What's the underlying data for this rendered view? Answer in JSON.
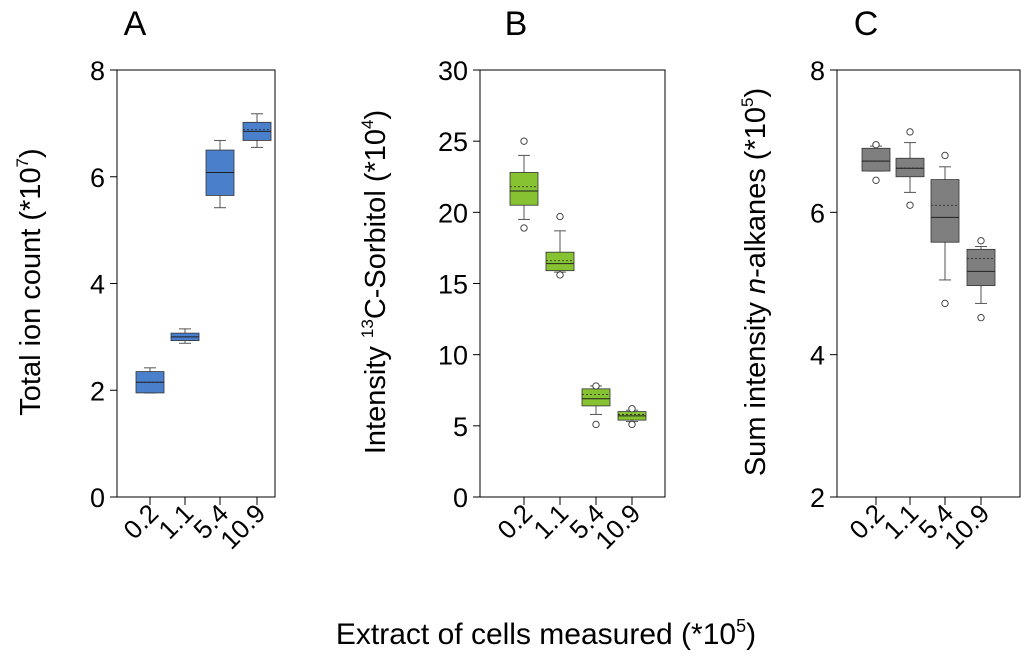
{
  "figure": {
    "xlabel_main": "Extract of cells measured (*10",
    "xlabel_exp": "5",
    "xlabel_close": ")"
  },
  "colors": {
    "A": "#4a7fcc",
    "B": "#86c232",
    "C": "#7f7f7f",
    "axis": "#000000",
    "whisker": "#555555"
  },
  "chart_data": [
    {
      "id": "A",
      "type": "box",
      "panel_label": "A",
      "ylabel_parts": [
        "Total ion count (*10",
        "7",
        ")"
      ],
      "ylim": [
        0,
        8
      ],
      "yticks": [
        0,
        2,
        4,
        6,
        8
      ],
      "categories": [
        "0.2",
        "1.1",
        "5.4",
        "10.9"
      ],
      "color_key": "A",
      "boxes": [
        {
          "x": "0.2",
          "whisker_low": 1.95,
          "q1": 1.95,
          "median": 2.15,
          "mean": 2.15,
          "q3": 2.35,
          "whisker_high": 2.42,
          "outliers": []
        },
        {
          "x": "1.1",
          "whisker_low": 2.88,
          "q1": 2.93,
          "median": 3.0,
          "mean": 3.0,
          "q3": 3.07,
          "whisker_high": 3.15,
          "outliers": []
        },
        {
          "x": "5.4",
          "whisker_low": 5.42,
          "q1": 5.65,
          "median": 6.08,
          "mean": 6.08,
          "q3": 6.5,
          "whisker_high": 6.68,
          "outliers": []
        },
        {
          "x": "10.9",
          "whisker_low": 6.55,
          "q1": 6.68,
          "median": 6.85,
          "mean": 6.88,
          "q3": 7.02,
          "whisker_high": 7.18,
          "outliers": []
        }
      ]
    },
    {
      "id": "B",
      "type": "box",
      "panel_label": "B",
      "ylabel_parts": [
        "Intensity ",
        "13",
        "C-Sorbitol (*10",
        "4",
        ")"
      ],
      "ylim": [
        0,
        30
      ],
      "yticks": [
        0,
        5,
        10,
        15,
        20,
        25,
        30
      ],
      "categories": [
        "0.2",
        "1.1",
        "5.4",
        "10.9"
      ],
      "color_key": "B",
      "boxes": [
        {
          "x": "0.2",
          "whisker_low": 19.5,
          "q1": 20.5,
          "median": 21.5,
          "mean": 21.8,
          "q3": 22.8,
          "whisker_high": 24.0,
          "outliers": [
            18.9,
            25.0
          ]
        },
        {
          "x": "1.1",
          "whisker_low": 15.8,
          "q1": 15.9,
          "median": 16.4,
          "mean": 16.6,
          "q3": 17.2,
          "whisker_high": 18.7,
          "outliers": [
            15.6,
            19.7
          ]
        },
        {
          "x": "5.4",
          "whisker_low": 5.8,
          "q1": 6.4,
          "median": 6.9,
          "mean": 7.2,
          "q3": 7.6,
          "whisker_high": 7.8,
          "outliers": [
            5.1,
            7.8
          ]
        },
        {
          "x": "10.9",
          "whisker_low": 5.3,
          "q1": 5.4,
          "median": 5.7,
          "mean": 5.8,
          "q3": 6.0,
          "whisker_high": 6.1,
          "outliers": [
            5.1,
            6.2
          ]
        }
      ]
    },
    {
      "id": "C",
      "type": "box",
      "panel_label": "C",
      "ylabel_parts": [
        "Sum intensity ",
        "n",
        "-alkanes (*10",
        "5",
        ")"
      ],
      "ylim": [
        2,
        8
      ],
      "yticks": [
        2,
        4,
        6,
        8
      ],
      "categories": [
        "0.2",
        "1.1",
        "5.4",
        "10.9"
      ],
      "color_key": "C",
      "boxes": [
        {
          "x": "0.2",
          "whisker_low": 6.58,
          "q1": 6.58,
          "median": 6.72,
          "mean": 6.72,
          "q3": 6.9,
          "whisker_high": 6.93,
          "outliers": [
            6.45,
            6.95
          ]
        },
        {
          "x": "1.1",
          "whisker_low": 6.28,
          "q1": 6.5,
          "median": 6.62,
          "mean": 6.62,
          "q3": 6.76,
          "whisker_high": 6.98,
          "outliers": [
            6.1,
            7.13
          ]
        },
        {
          "x": "5.4",
          "whisker_low": 5.05,
          "q1": 5.58,
          "median": 5.93,
          "mean": 6.1,
          "q3": 6.46,
          "whisker_high": 6.64,
          "outliers": [
            4.72,
            6.8
          ]
        },
        {
          "x": "10.9",
          "whisker_low": 4.72,
          "q1": 4.97,
          "median": 5.17,
          "mean": 5.35,
          "q3": 5.48,
          "whisker_high": 5.52,
          "outliers": [
            4.52,
            5.6
          ]
        }
      ]
    }
  ]
}
